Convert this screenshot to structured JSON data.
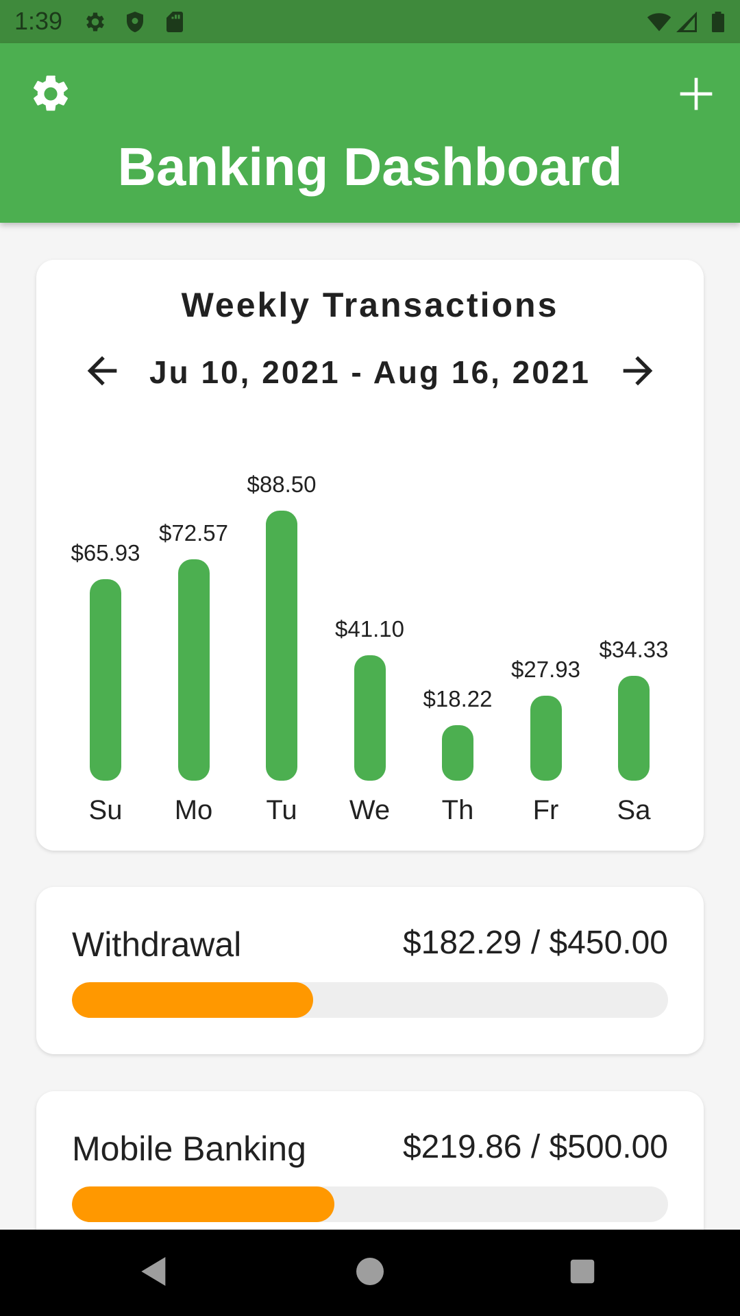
{
  "status_bar": {
    "time": "1:39",
    "icons": [
      "gear-icon",
      "shield-icon",
      "sd-card-icon",
      "wifi-icon",
      "signal-icon",
      "battery-icon"
    ]
  },
  "app_bar": {
    "title": "Banking Dashboard",
    "left_icon": "gear-icon",
    "right_icon": "plus-icon",
    "color": "#4caf50"
  },
  "weekly_card": {
    "title": "Weekly Transactions",
    "date_range": "Ju 10, 2021 - Aug 16, 2021",
    "prev_icon": "arrow-left-icon",
    "next_icon": "arrow-right-icon"
  },
  "chart_data": {
    "type": "bar",
    "categories": [
      "Su",
      "Mo",
      "Tu",
      "We",
      "Th",
      "Fr",
      "Sa"
    ],
    "values": [
      65.93,
      72.57,
      88.5,
      41.1,
      18.22,
      27.93,
      34.33
    ],
    "value_labels": [
      "$65.93",
      "$72.57",
      "$88.50",
      "$41.10",
      "$18.22",
      "$27.93",
      "$34.33"
    ],
    "bar_color": "#4caf50",
    "grid": false
  },
  "budgets": [
    {
      "label": "Withdrawal",
      "amount_text": "$182.29 / $450.00",
      "spent": 182.29,
      "limit": 450.0,
      "color": "#ff9800"
    },
    {
      "label": "Mobile Banking",
      "amount_text": "$219.86 / $500.00",
      "spent": 219.86,
      "limit": 500.0,
      "color": "#ff9800"
    }
  ],
  "nav_bar": {
    "icons": [
      "back-icon",
      "home-icon",
      "recents-icon"
    ]
  }
}
